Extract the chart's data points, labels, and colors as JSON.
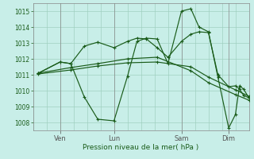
{
  "background_color": "#c8eee8",
  "grid_color": "#a0d0c0",
  "line_color": "#1a5c1a",
  "marker_color": "#1a5c1a",
  "xlabel": "Pression niveau de la mer( hPa )",
  "ylim": [
    1007.5,
    1015.5
  ],
  "yticks": [
    1008,
    1009,
    1010,
    1011,
    1012,
    1013,
    1014,
    1015
  ],
  "xlim": [
    0,
    8.0
  ],
  "day_labels": [
    "Ven",
    "Lun",
    "Sam",
    "Dim"
  ],
  "day_positions": [
    1.0,
    3.0,
    5.5,
    7.25
  ],
  "xtick_positions": [
    1.0,
    3.0,
    5.5,
    7.25
  ],
  "series": [
    {
      "x": [
        0.2,
        1.0,
        1.4,
        1.9,
        2.4,
        3.0,
        3.5,
        3.85,
        4.2,
        4.6,
        5.0,
        5.5,
        5.85,
        6.15,
        6.5,
        6.85,
        7.25,
        7.5,
        7.65,
        7.8,
        8.0
      ],
      "y": [
        1011.1,
        1011.8,
        1011.7,
        1009.6,
        1008.2,
        1008.1,
        1010.9,
        1013.1,
        1013.3,
        1013.25,
        1011.7,
        1015.0,
        1015.15,
        1014.0,
        1013.7,
        1010.85,
        1007.65,
        1008.5,
        1010.3,
        1010.1,
        1009.55
      ]
    },
    {
      "x": [
        0.2,
        1.0,
        1.4,
        1.9,
        2.4,
        3.0,
        3.5,
        3.85,
        4.2,
        4.6,
        5.0,
        5.5,
        5.85,
        6.15,
        6.5,
        6.85,
        7.25,
        7.5,
        7.65,
        7.8,
        8.0
      ],
      "y": [
        1011.1,
        1011.8,
        1011.7,
        1012.8,
        1013.05,
        1012.7,
        1013.1,
        1013.3,
        1013.25,
        1012.7,
        1012.1,
        1013.1,
        1013.55,
        1013.7,
        1013.65,
        1011.0,
        1010.25,
        1010.3,
        1010.1,
        1009.7,
        1009.55
      ]
    },
    {
      "x": [
        0.2,
        1.4,
        2.4,
        3.5,
        4.6,
        5.85,
        6.5,
        7.5,
        8.0
      ],
      "y": [
        1011.05,
        1011.3,
        1011.55,
        1011.75,
        1011.8,
        1011.5,
        1010.85,
        1010.05,
        1009.65
      ]
    },
    {
      "x": [
        0.2,
        1.4,
        2.4,
        3.5,
        4.6,
        5.85,
        6.5,
        7.5,
        8.0
      ],
      "y": [
        1011.1,
        1011.45,
        1011.7,
        1012.0,
        1012.1,
        1011.25,
        1010.5,
        1009.75,
        1009.4
      ]
    }
  ]
}
